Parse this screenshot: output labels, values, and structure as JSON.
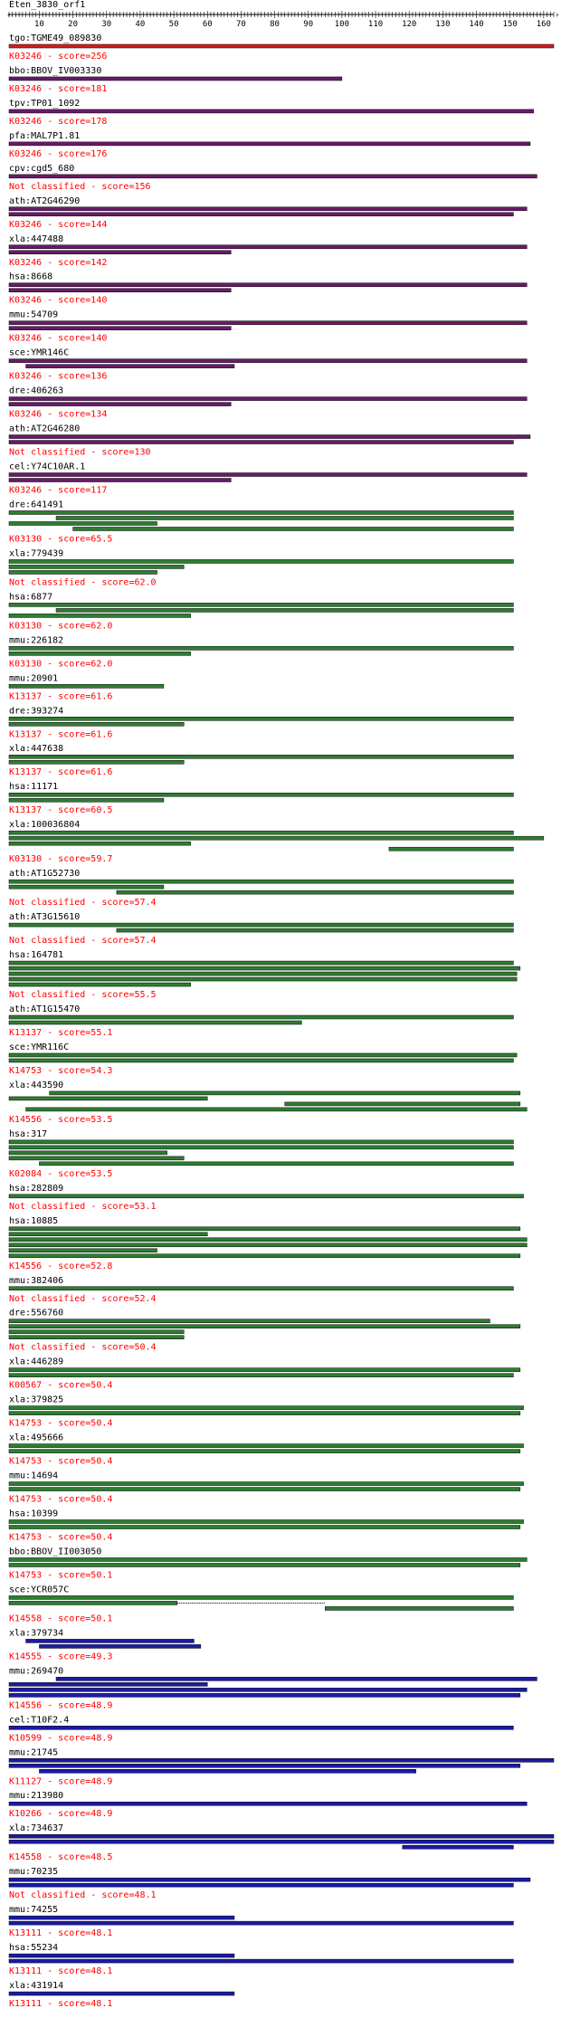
{
  "title": "Eten_3830_orf1",
  "scale": {
    "min": 1,
    "max": 163,
    "ticks": [
      10,
      20,
      30,
      40,
      50,
      60,
      70,
      80,
      90,
      100,
      110,
      120,
      130,
      140,
      150,
      160
    ]
  },
  "colors": {
    "red": "#d02020",
    "purple": "#6a1a6a",
    "green": "#2e7d32",
    "blue": "#1a1aa8",
    "label": "#000000",
    "score": "#ff0000"
  },
  "entries": [
    {
      "name": "tgo:TGME49_089830",
      "color": "red",
      "score": "K03246 - score=256",
      "bars": [
        [
          1,
          163
        ]
      ]
    },
    {
      "name": "bbo:BBOV_IV003330",
      "color": "purple",
      "score": "K03246 - score=181",
      "bars": [
        [
          1,
          100
        ]
      ]
    },
    {
      "name": "tpv:TP01_1092",
      "color": "purple",
      "score": "K03246 - score=178",
      "bars": [
        [
          1,
          157
        ]
      ]
    },
    {
      "name": "pfa:MAL7P1.81",
      "color": "purple",
      "score": "K03246 - score=176",
      "bars": [
        [
          1,
          156
        ]
      ]
    },
    {
      "name": "cpv:cgd5_680",
      "color": "purple",
      "score": "Not classified - score=156",
      "bars": [
        [
          1,
          158
        ]
      ]
    },
    {
      "name": "ath:AT2G46290",
      "color": "purple",
      "score": "K03246 - score=144",
      "bars": [
        [
          1,
          155
        ],
        [
          1,
          151
        ]
      ]
    },
    {
      "name": "xla:447488",
      "color": "purple",
      "score": "K03246 - score=142",
      "bars": [
        [
          1,
          155
        ],
        [
          1,
          67
        ]
      ]
    },
    {
      "name": "hsa:8668",
      "color": "purple",
      "score": "K03246 - score=140",
      "bars": [
        [
          1,
          155
        ],
        [
          1,
          67
        ]
      ]
    },
    {
      "name": "mmu:54709",
      "color": "purple",
      "score": "K03246 - score=140",
      "bars": [
        [
          1,
          155
        ],
        [
          1,
          67
        ]
      ]
    },
    {
      "name": "sce:YMR146C",
      "color": "purple",
      "score": "K03246 - score=136",
      "bars": [
        [
          1,
          155
        ],
        [
          6,
          68
        ]
      ]
    },
    {
      "name": "dre:406263",
      "color": "purple",
      "score": "K03246 - score=134",
      "bars": [
        [
          1,
          155
        ],
        [
          1,
          67
        ]
      ]
    },
    {
      "name": "ath:AT2G46280",
      "color": "purple",
      "score": "Not classified - score=130",
      "bars": [
        [
          1,
          156
        ],
        [
          1,
          151
        ]
      ]
    },
    {
      "name": "cel:Y74C10AR.1",
      "color": "purple",
      "score": "K03246 - score=117",
      "bars": [
        [
          1,
          155
        ],
        [
          1,
          67
        ]
      ]
    },
    {
      "name": "dre:641491",
      "color": "green",
      "score": "K03130 - score=65.5",
      "bars": [
        [
          1,
          151
        ],
        [
          15,
          151
        ],
        [
          1,
          45
        ],
        [
          20,
          151
        ]
      ]
    },
    {
      "name": "xla:779439",
      "color": "green",
      "score": "Not classified - score=62.0",
      "bars": [
        [
          1,
          151
        ],
        [
          1,
          53
        ],
        [
          1,
          45
        ]
      ]
    },
    {
      "name": "hsa:6877",
      "color": "green",
      "score": "K03130 - score=62.0",
      "bars": [
        [
          1,
          151
        ],
        [
          15,
          151
        ],
        [
          1,
          55
        ]
      ]
    },
    {
      "name": "mmu:226182",
      "color": "green",
      "score": "K03130 - score=62.0",
      "bars": [
        [
          1,
          151
        ],
        [
          1,
          55
        ]
      ]
    },
    {
      "name": "mmu:20901",
      "color": "green",
      "score": "K13137 - score=61.6",
      "bars": [
        [
          1,
          47
        ]
      ]
    },
    {
      "name": "dre:393274",
      "color": "green",
      "score": "K13137 - score=61.6",
      "bars": [
        [
          1,
          151
        ],
        [
          1,
          53
        ]
      ]
    },
    {
      "name": "xla:447638",
      "color": "green",
      "score": "K13137 - score=61.6",
      "bars": [
        [
          1,
          151
        ],
        [
          1,
          53
        ]
      ]
    },
    {
      "name": "hsa:11171",
      "color": "green",
      "score": "K13137 - score=60.5",
      "bars": [
        [
          1,
          151
        ],
        [
          1,
          47
        ]
      ]
    },
    {
      "name": "xla:100036804",
      "color": "green",
      "score": "K03130 - score=59.7",
      "bars": [
        [
          1,
          151
        ],
        [
          1,
          160
        ],
        [
          1,
          55
        ],
        [
          114,
          151
        ]
      ]
    },
    {
      "name": "ath:AT1G52730",
      "color": "green",
      "score": "Not classified - score=57.4",
      "bars": [
        [
          1,
          151
        ],
        [
          1,
          47
        ],
        [
          33,
          151
        ]
      ]
    },
    {
      "name": "ath:AT3G15610",
      "color": "green",
      "score": "Not classified - score=57.4",
      "bars": [
        [
          1,
          151
        ],
        [
          33,
          151
        ]
      ]
    },
    {
      "name": "hsa:164781",
      "color": "green",
      "score": "Not classified - score=55.5",
      "bars": [
        [
          1,
          151
        ],
        [
          1,
          153
        ],
        [
          1,
          152
        ],
        [
          1,
          152
        ],
        [
          1,
          55
        ]
      ]
    },
    {
      "name": "ath:AT1G15470",
      "color": "green",
      "score": "K13137 - score=55.1",
      "bars": [
        [
          1,
          151
        ],
        [
          1,
          88
        ]
      ]
    },
    {
      "name": "sce:YMR116C",
      "color": "green",
      "score": "K14753 - score=54.3",
      "bars": [
        [
          1,
          152
        ],
        [
          1,
          151
        ]
      ]
    },
    {
      "name": "xla:443590",
      "color": "green",
      "score": "K14556 - score=53.5",
      "bars": [
        [
          13,
          153
        ],
        [
          1,
          60
        ],
        [
          83,
          153
        ],
        [
          6,
          155
        ]
      ]
    },
    {
      "name": "hsa:317",
      "color": "green",
      "score": "K02084 - score=53.5",
      "bars": [
        [
          1,
          151
        ],
        [
          1,
          151
        ],
        [
          1,
          48
        ],
        [
          1,
          53
        ],
        [
          10,
          151
        ]
      ]
    },
    {
      "name": "hsa:282809",
      "color": "green",
      "score": "Not classified - score=53.1",
      "bars": [
        [
          1,
          154
        ]
      ]
    },
    {
      "name": "hsa:10885",
      "color": "green",
      "score": "K14556 - score=52.8",
      "bars": [
        [
          1,
          153
        ],
        [
          1,
          60
        ],
        [
          1,
          155
        ],
        [
          1,
          155
        ],
        [
          1,
          45
        ],
        [
          1,
          153
        ]
      ]
    },
    {
      "name": "mmu:382406",
      "color": "green",
      "score": "Not classified - score=52.4",
      "bars": [
        [
          1,
          151
        ]
      ]
    },
    {
      "name": "dre:556760",
      "color": "green",
      "score": "Not classified - score=50.4",
      "bars": [
        [
          1,
          144
        ],
        [
          1,
          153
        ],
        [
          1,
          53
        ],
        [
          1,
          53
        ]
      ]
    },
    {
      "name": "xla:446289",
      "color": "green",
      "score": "K00567 - score=50.4",
      "bars": [
        [
          1,
          153
        ],
        [
          1,
          151
        ]
      ]
    },
    {
      "name": "xla:379825",
      "color": "green",
      "score": "K14753 - score=50.4",
      "bars": [
        [
          1,
          154
        ],
        [
          1,
          153
        ]
      ]
    },
    {
      "name": "xla:495666",
      "color": "green",
      "score": "K14753 - score=50.4",
      "bars": [
        [
          1,
          154
        ],
        [
          1,
          153
        ]
      ]
    },
    {
      "name": "mmu:14694",
      "color": "green",
      "score": "K14753 - score=50.4",
      "bars": [
        [
          1,
          154
        ],
        [
          1,
          153
        ]
      ]
    },
    {
      "name": "hsa:10399",
      "color": "green",
      "score": "K14753 - score=50.4",
      "bars": [
        [
          1,
          154
        ],
        [
          1,
          153
        ]
      ]
    },
    {
      "name": "bbo:BBOV_II003050",
      "color": "green",
      "score": "K14753 - score=50.1",
      "bars": [
        [
          1,
          155
        ],
        [
          1,
          153
        ]
      ]
    },
    {
      "name": "sce:YCR057C",
      "color": "green",
      "score": "K14558 - score=50.1",
      "bars": [
        [
          1,
          151
        ],
        [
          1,
          51
        ],
        [
          95,
          151
        ]
      ],
      "dashed": [
        [
          51,
          95
        ]
      ]
    },
    {
      "name": "xla:379734",
      "color": "blue",
      "score": "K14555 - score=49.3",
      "bars": [
        [
          6,
          56
        ],
        [
          10,
          58
        ]
      ]
    },
    {
      "name": "mmu:269470",
      "color": "blue",
      "score": "K14556 - score=48.9",
      "bars": [
        [
          15,
          158
        ],
        [
          1,
          60
        ],
        [
          1,
          155
        ],
        [
          1,
          153
        ]
      ]
    },
    {
      "name": "cel:T10F2.4",
      "color": "blue",
      "score": "K10599 - score=48.9",
      "bars": [
        [
          1,
          151
        ]
      ]
    },
    {
      "name": "mmu:21745",
      "color": "blue",
      "score": "K11127 - score=48.9",
      "bars": [
        [
          1,
          163
        ],
        [
          1,
          153
        ],
        [
          10,
          122
        ]
      ]
    },
    {
      "name": "mmu:213980",
      "color": "blue",
      "score": "K10266 - score=48.9",
      "bars": [
        [
          1,
          155
        ]
      ]
    },
    {
      "name": "xla:734637",
      "color": "blue",
      "score": "K14558 - score=48.5",
      "bars": [
        [
          1,
          163
        ],
        [
          1,
          163
        ],
        [
          118,
          151
        ]
      ]
    },
    {
      "name": "mmu:70235",
      "color": "blue",
      "score": "Not classified - score=48.1",
      "bars": [
        [
          1,
          156
        ],
        [
          1,
          151
        ]
      ]
    },
    {
      "name": "mmu:74255",
      "color": "blue",
      "score": "K13111 - score=48.1",
      "bars": [
        [
          1,
          68
        ],
        [
          1,
          151
        ]
      ]
    },
    {
      "name": "hsa:55234",
      "color": "blue",
      "score": "K13111 - score=48.1",
      "bars": [
        [
          1,
          68
        ],
        [
          1,
          151
        ]
      ]
    },
    {
      "name": "xla:431914",
      "color": "blue",
      "score": "K13111 - score=48.1",
      "bars": [
        [
          1,
          68
        ]
      ]
    }
  ]
}
